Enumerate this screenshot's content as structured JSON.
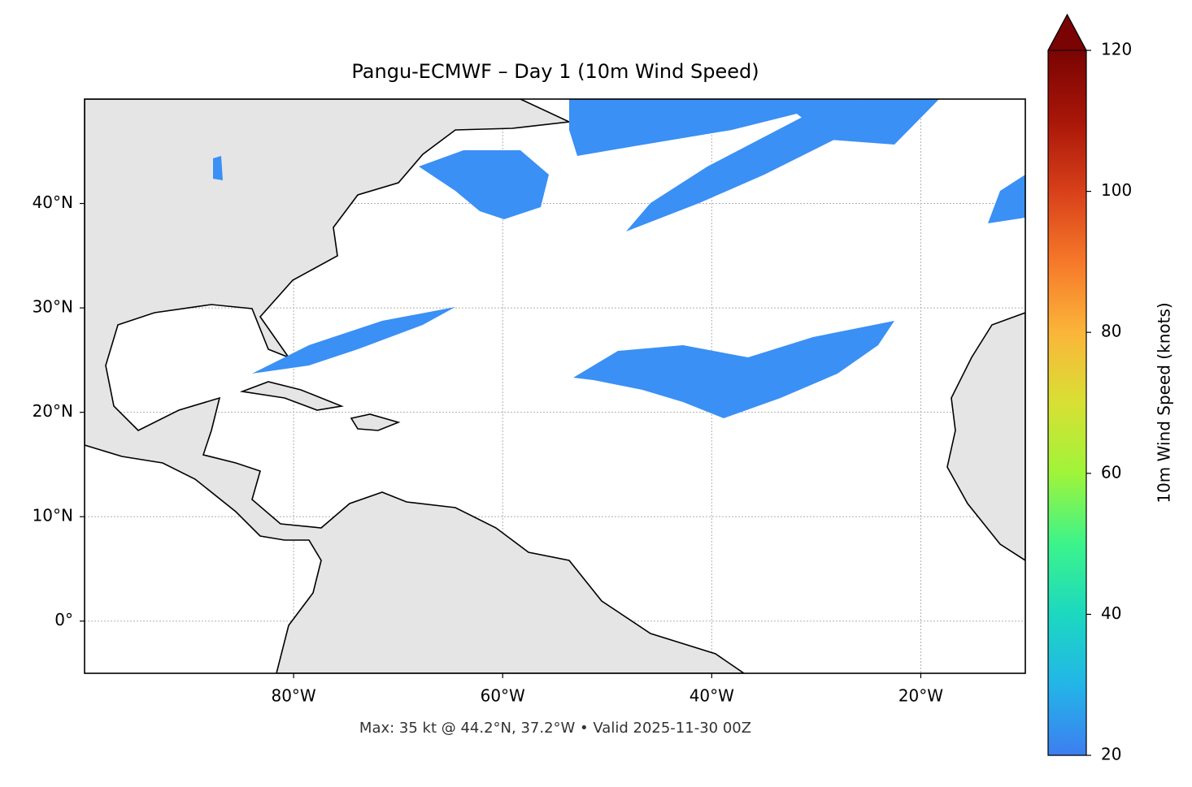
{
  "title": "Pangu-ECMWF – Day 1 (10m Wind Speed)",
  "footer": "Max: 35 kt @ 44.2°N, 37.2°W • Valid 2025-11-30 00Z",
  "map": {
    "lonlim": [
      -100,
      -10
    ],
    "latlim": [
      -5,
      50
    ],
    "lonticks": [
      {
        "value": -80,
        "label": "80°W"
      },
      {
        "value": -60,
        "label": "60°W"
      },
      {
        "value": -40,
        "label": "40°W"
      },
      {
        "value": -20,
        "label": "20°W"
      }
    ],
    "latticks": [
      {
        "value": 0,
        "label": "0°"
      },
      {
        "value": 10,
        "label": "10°N"
      },
      {
        "value": 20,
        "label": "20°N"
      },
      {
        "value": 30,
        "label": "30°N"
      },
      {
        "value": 40,
        "label": "40°N"
      }
    ],
    "grid": true
  },
  "colorbar": {
    "label": "10m Wind Speed (knots)",
    "lim": [
      20,
      120
    ],
    "ticks": [
      20,
      40,
      60,
      80,
      100,
      120
    ],
    "extend": "max"
  }
}
